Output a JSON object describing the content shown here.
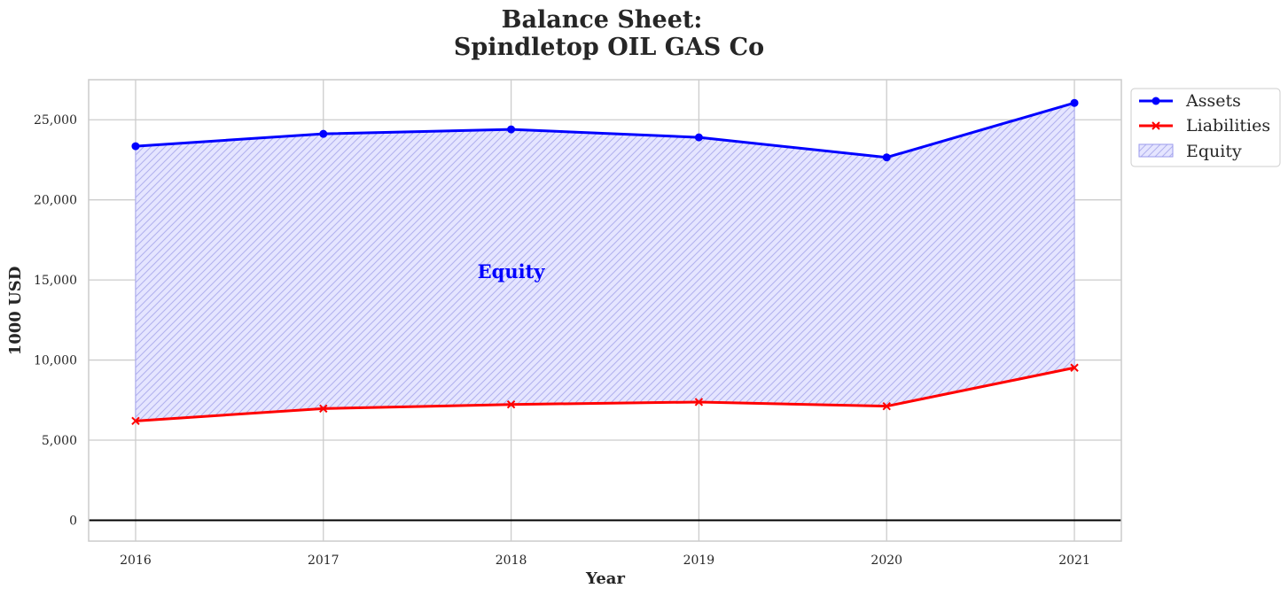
{
  "chart_data": {
    "type": "line",
    "title_lines": [
      "Balance Sheet:",
      "Spindletop OIL GAS Co"
    ],
    "xlabel": "Year",
    "ylabel": "1000 USD",
    "x": [
      2016,
      2017,
      2018,
      2019,
      2020,
      2021
    ],
    "xlim": [
      2015.75,
      2021.25
    ],
    "ylim": [
      -1300,
      27500
    ],
    "yticks": [
      0,
      5000,
      10000,
      15000,
      20000,
      25000
    ],
    "ytick_labels": [
      "0",
      "5,000",
      "10,000",
      "15,000",
      "20,000",
      "25,000"
    ],
    "grid": true,
    "series": [
      {
        "name": "Assets",
        "values": [
          23350,
          24120,
          24400,
          23900,
          22650,
          26050
        ],
        "color": "#0000ff",
        "marker": "circle"
      },
      {
        "name": "Liabilities",
        "values": [
          6200,
          6970,
          7230,
          7380,
          7120,
          9520
        ],
        "color": "#ff0000",
        "marker": "x"
      }
    ],
    "fill": {
      "name": "Equity",
      "between": [
        "Assets",
        "Liabilities"
      ],
      "color": "#0000ff",
      "hatch": "////"
    },
    "annotation": {
      "text": "Equity",
      "x": 2018,
      "y": 15500,
      "color": "#0000ff"
    },
    "zero_line": true,
    "legend": {
      "placement": "outside-top-right",
      "entries": [
        {
          "label": "Assets",
          "kind": "line-circle",
          "color": "#0000ff"
        },
        {
          "label": "Liabilities",
          "kind": "line-x",
          "color": "#ff0000"
        },
        {
          "label": "Equity",
          "kind": "patch",
          "color": "#0000ff"
        }
      ]
    }
  }
}
